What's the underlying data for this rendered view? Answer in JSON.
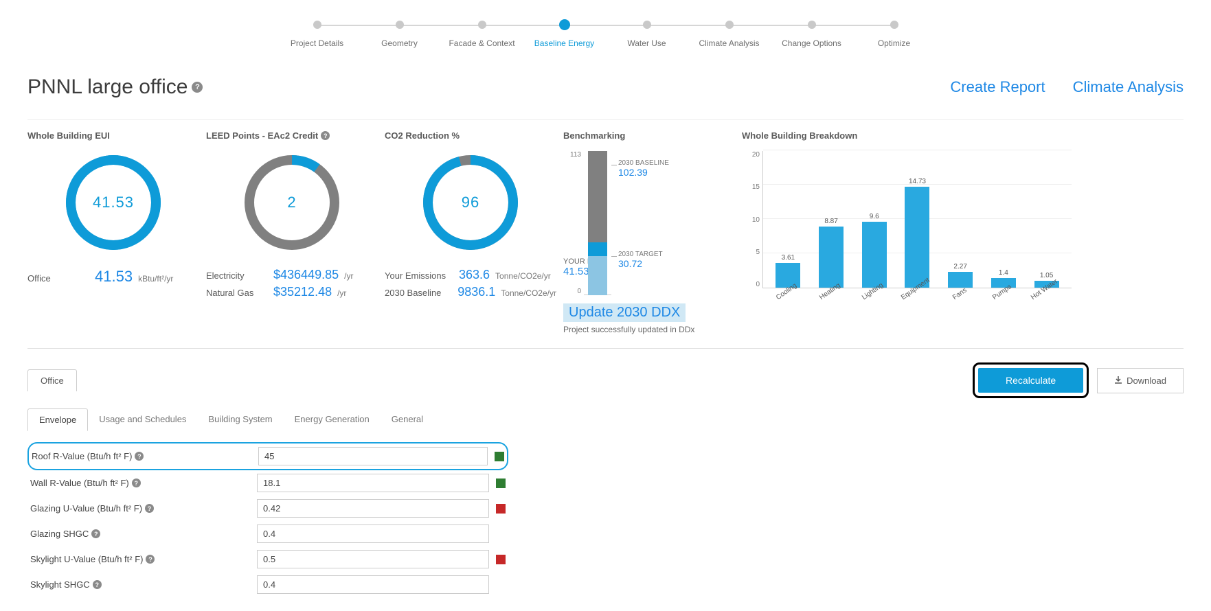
{
  "colors": {
    "accent": "#0e9bd8",
    "link": "#1e88e5",
    "grey": "#808080",
    "bar": "#29a9e0",
    "bench_top": "#808080",
    "bench_mid": "#0e9bd8",
    "bench_bot": "#8cc5e3",
    "status_green": "#2e7d32",
    "status_red": "#c62828"
  },
  "stepper": {
    "steps": [
      {
        "label": "Project Details"
      },
      {
        "label": "Geometry"
      },
      {
        "label": "Facade & Context"
      },
      {
        "label": "Baseline Energy"
      },
      {
        "label": "Water Use"
      },
      {
        "label": "Climate Analysis"
      },
      {
        "label": "Change Options"
      },
      {
        "label": "Optimize"
      }
    ],
    "active_index": 3
  },
  "header": {
    "title": "PNNL large office",
    "create_report": "Create Report",
    "climate_analysis": "Climate Analysis"
  },
  "metrics": {
    "eui": {
      "title": "Whole Building EUI",
      "donut_value": "41.53",
      "donut_percent": 100,
      "donut_color": "#0e9bd8",
      "donut_track": "#0e9bd8",
      "row_label": "Office",
      "row_value": "41.53",
      "row_unit": "kBtu/ft²/yr"
    },
    "leed": {
      "title": "LEED Points - EAc2 Credit",
      "donut_value": "2",
      "donut_percent": 10,
      "donut_color": "#0e9bd8",
      "donut_track": "#808080",
      "rows": [
        {
          "label": "Electricity",
          "value": "$436449.85",
          "unit": "/yr"
        },
        {
          "label": "Natural Gas",
          "value": "$35212.48",
          "unit": "/yr"
        }
      ]
    },
    "co2": {
      "title": "CO2 Reduction %",
      "donut_value": "96",
      "donut_percent": 96,
      "donut_color": "#0e9bd8",
      "donut_track": "#808080",
      "rows": [
        {
          "label": "Your Emissions",
          "value": "363.6",
          "unit": "Tonne/CO2e/yr"
        },
        {
          "label": "2030 Baseline",
          "value": "9836.1",
          "unit": "Tonne/CO2e/yr"
        }
      ]
    },
    "bench": {
      "title": "Benchmarking",
      "ymax": 113,
      "ymin": 0,
      "baseline_label": "2030 BASELINE",
      "baseline_value": "102.39",
      "target_label": "2030 TARGET",
      "target_value": "30.72",
      "your_eui_label": "YOUR EUI",
      "your_eui_value": "41.53",
      "update_link": "Update 2030 DDX",
      "status": "Project successfully updated in DDx",
      "segments": [
        {
          "from": 102.39,
          "to": 113,
          "color_key": "bench_top"
        },
        {
          "from": 41.53,
          "to": 102.39,
          "color_key": "bench_top"
        },
        {
          "from": 30.72,
          "to": 41.53,
          "color_key": "bench_mid"
        },
        {
          "from": 0,
          "to": 30.72,
          "color_key": "bench_bot"
        }
      ]
    },
    "breakdown": {
      "title": "Whole Building Breakdown",
      "ymax": 20,
      "yticks": [
        0,
        5,
        10,
        15,
        20
      ],
      "bars": [
        {
          "label": "Cooling",
          "value": 3.61
        },
        {
          "label": "Heating",
          "value": 8.87
        },
        {
          "label": "Lighting",
          "value": 9.6
        },
        {
          "label": "Equipment",
          "value": 14.73
        },
        {
          "label": "Fans",
          "value": 2.27
        },
        {
          "label": "Pumps",
          "value": 1.4
        },
        {
          "label": "Hot Water",
          "value": 1.05
        }
      ],
      "bar_color": "#29a9e0"
    }
  },
  "tabs": {
    "main": [
      {
        "label": "Office"
      }
    ],
    "recalculate": "Recalculate",
    "download": "Download",
    "sub": [
      {
        "label": "Envelope"
      },
      {
        "label": "Usage and Schedules"
      },
      {
        "label": "Building System"
      },
      {
        "label": "Energy Generation"
      },
      {
        "label": "General"
      }
    ],
    "sub_active": 0
  },
  "form": {
    "rows": [
      {
        "label": "Roof R-Value (Btu/h ft² F)",
        "value": "45",
        "status": "green",
        "help": true,
        "highlighted": true
      },
      {
        "label": "Wall R-Value (Btu/h ft² F)",
        "value": "18.1",
        "status": "green",
        "help": true
      },
      {
        "label": "Glazing U-Value (Btu/h ft² F)",
        "value": "0.42",
        "status": "red",
        "help": true
      },
      {
        "label": "Glazing SHGC",
        "value": "0.4",
        "status": "",
        "help": true
      },
      {
        "label": "Skylight U-Value (Btu/h ft² F)",
        "value": "0.5",
        "status": "red",
        "help": true
      },
      {
        "label": "Skylight SHGC",
        "value": "0.4",
        "status": "",
        "help": true
      }
    ]
  }
}
